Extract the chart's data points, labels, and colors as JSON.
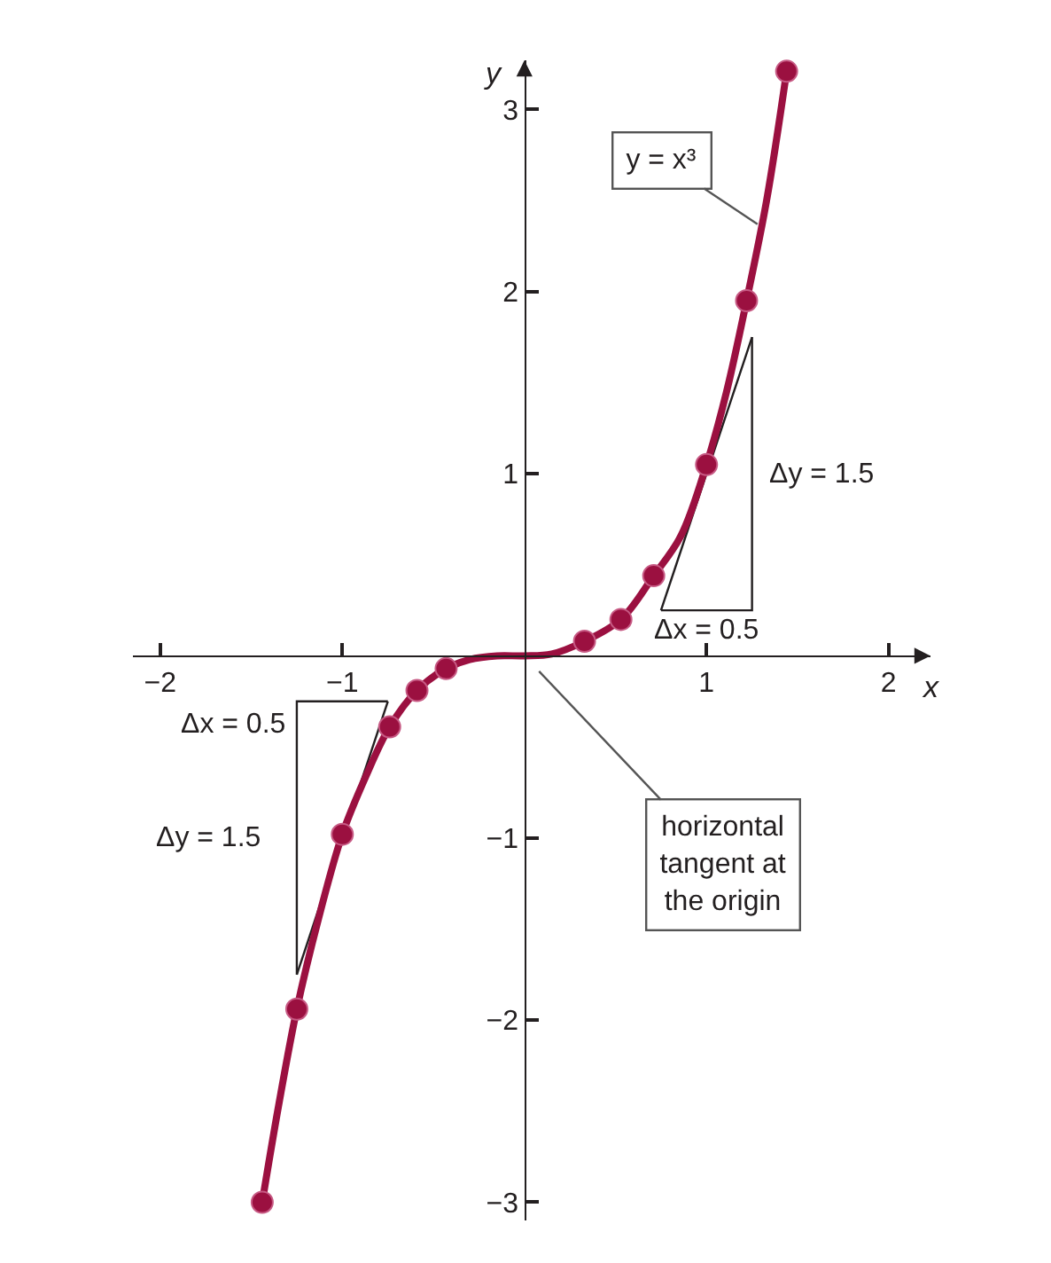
{
  "chart_data": {
    "type": "line",
    "xlabel": "x",
    "ylabel": "y",
    "xlim": [
      -2.15,
      2.23
    ],
    "ylim": [
      -3.1,
      3.27
    ],
    "xticks": [
      {
        "value": -2,
        "label": "−2"
      },
      {
        "value": -1,
        "label": "−1"
      },
      1,
      2
    ],
    "yticks": [
      {
        "value": -3,
        "label": "−3"
      },
      {
        "value": -2,
        "label": "−2"
      },
      {
        "value": -1,
        "label": "−1"
      },
      1,
      2,
      3
    ],
    "series": [
      {
        "color": "#231f20",
        "x": [
          0.75,
          1.25,
          1.25
        ],
        "values": [
          0.25,
          0.25,
          1.75
        ]
      },
      {
        "color": "#231f20",
        "x": [
          0.75,
          1.25
        ],
        "values": [
          0.25,
          1.75
        ]
      },
      {
        "color": "#231f20",
        "x": [
          -1.25,
          -1.25,
          -0.75
        ],
        "values": [
          -1.75,
          -0.25,
          -0.25
        ]
      },
      {
        "color": "#231f20",
        "x": [
          -1.25,
          -0.75
        ],
        "values": [
          -1.75,
          -0.25
        ]
      },
      {
        "color": "#9b1040",
        "x": [
          -1.44,
          -1.35,
          -1.25,
          -1.13,
          -1.0,
          -0.87,
          -0.74,
          -0.59,
          -0.43,
          -0.3,
          -0.15,
          0,
          0.15,
          0.33,
          0.53,
          0.71,
          0.86,
          1.0,
          1.11,
          1.22,
          1.33,
          1.44
        ],
        "values": [
          -3.0,
          -2.47,
          -1.94,
          -1.44,
          -0.98,
          -0.66,
          -0.39,
          -0.19,
          -0.07,
          -0.02,
          0.0,
          0.0,
          0.01,
          0.08,
          0.2,
          0.44,
          0.66,
          1.05,
          1.45,
          1.95,
          2.5,
          3.21
        ]
      },
      {
        "type": "scatter",
        "color": "#9b1040",
        "marker": "circle",
        "x": [
          -1.44,
          -1.25,
          -1.0,
          -0.74,
          -0.59,
          -0.43,
          0.33,
          0.53,
          0.71,
          1.0,
          1.22,
          1.44
        ],
        "values": [
          -3.0,
          -1.94,
          -0.98,
          -0.39,
          -0.19,
          -0.07,
          0.08,
          0.2,
          0.44,
          1.05,
          1.95,
          3.21
        ]
      }
    ],
    "annotations": [
      {
        "text": "y = x³",
        "x": 1.28,
        "y": 2.37
      },
      {
        "text": "horizontal\ntangent at\nthe origin",
        "x": 0,
        "y": 0
      },
      "Δy = 1.5",
      "Δx = 0.5",
      "Δy = 1.5",
      "Δx = 0.5"
    ]
  }
}
